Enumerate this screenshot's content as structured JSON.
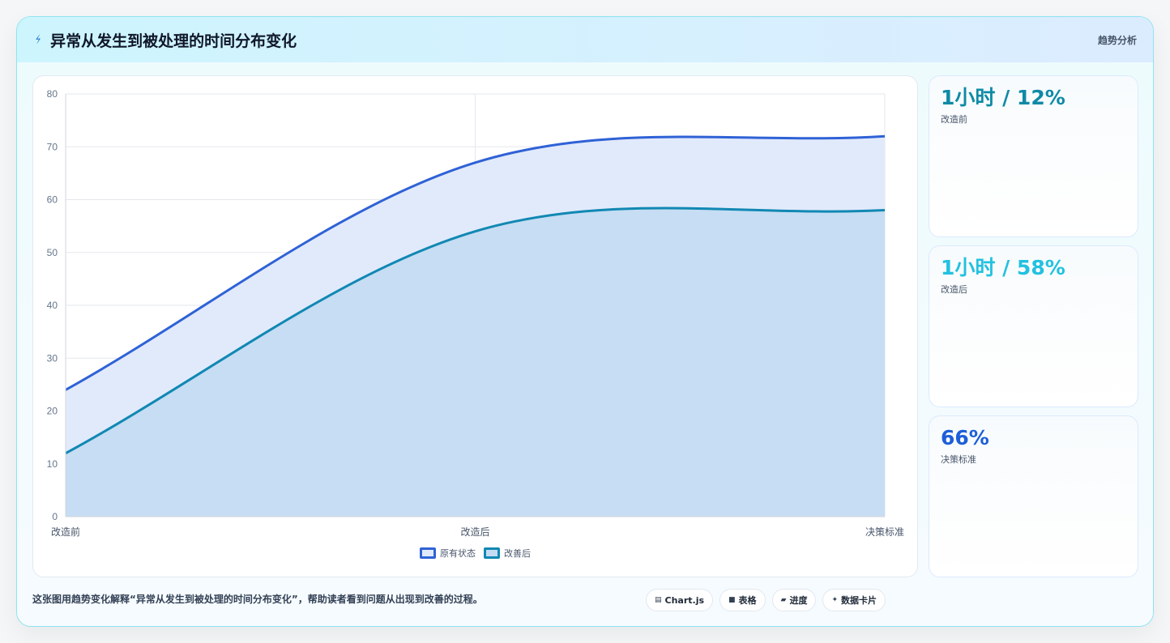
{
  "header": {
    "title": "异常从发生到被处理的时间分布变化",
    "tag": "趋势分析"
  },
  "chart_data": {
    "type": "area",
    "categories": [
      "改造前",
      "改造后",
      "决策标准"
    ],
    "series": [
      {
        "name": "原有状态",
        "values": [
          24,
          67,
          72
        ],
        "color": "#2f62d6",
        "fill": "#dfe9fb"
      },
      {
        "name": "改善后",
        "values": [
          12,
          54,
          58
        ],
        "color": "#1188b3",
        "fill": "#c4dcf2"
      }
    ],
    "ylim": [
      0,
      80
    ],
    "yticks": [
      0,
      10,
      20,
      30,
      40,
      50,
      60,
      70,
      80
    ],
    "grid": true,
    "legend": "bottom",
    "title": "",
    "xlabel": "",
    "ylabel": ""
  },
  "stats": [
    {
      "value": "1小时 / 12%",
      "label": "改造前",
      "color": "#0e8aa6"
    },
    {
      "value": "1小时 / 58%",
      "label": "改造后",
      "color": "#22c1e0"
    },
    {
      "value": "66%",
      "label": "决策标准",
      "color": "#1d5fd8"
    }
  ],
  "footnote": "这张图用趋势变化解释“异常从发生到被处理的时间分布变化”，帮助读者看到问题从出现到改善的过程。",
  "chips": [
    {
      "icon": "▤",
      "icon_name": "chart-icon",
      "label": "Chart.js"
    },
    {
      "icon": "■",
      "icon_name": "table-icon",
      "label": "表格"
    },
    {
      "icon": "▰",
      "icon_name": "progress-icon",
      "label": "进度"
    },
    {
      "icon": "✦",
      "icon_name": "sparkle-icon",
      "label": "数据卡片"
    }
  ]
}
